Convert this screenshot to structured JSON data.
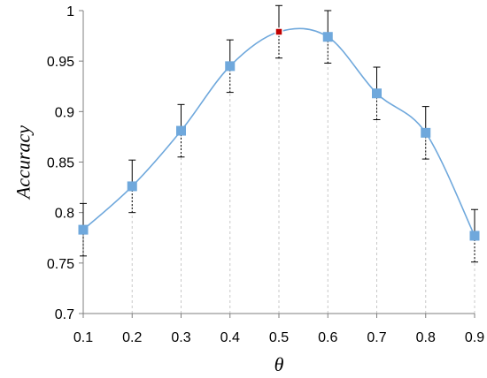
{
  "chart_data": {
    "type": "line",
    "title": "",
    "xlabel": "θ",
    "ylabel": "Accuracy",
    "x": [
      0.1,
      0.2,
      0.3,
      0.4,
      0.5,
      0.6,
      0.7,
      0.8,
      0.9
    ],
    "x_tick_labels": [
      "0.1",
      "0.2",
      "0.3",
      "0.4",
      "0.5",
      "0.6",
      "0.7",
      "0.8",
      "0.9"
    ],
    "y_tick_labels": [
      "0.7",
      "0.75",
      "0.8",
      "0.85",
      "0.9",
      "0.95",
      "1"
    ],
    "y_ticks": [
      0.7,
      0.75,
      0.8,
      0.85,
      0.9,
      0.95,
      1.0
    ],
    "xlim": [
      0.1,
      0.9
    ],
    "ylim": [
      0.7,
      1.0
    ],
    "grid": "dashed vertical lines at each x",
    "legend": "none",
    "series": [
      {
        "values": [
          0.783,
          0.826,
          0.881,
          0.945,
          0.979,
          0.974,
          0.918,
          0.879,
          0.777
        ],
        "error": [
          0.026,
          0.026,
          0.026,
          0.026,
          0.026,
          0.026,
          0.026,
          0.026,
          0.026
        ],
        "highlight_index": 4
      }
    ],
    "colors": {
      "line": "#6fa8dc",
      "marker": "#6fa8dc",
      "highlight_marker": "#c00000",
      "grid": "#c8c8c8",
      "axis": "#7f7f7f"
    }
  }
}
